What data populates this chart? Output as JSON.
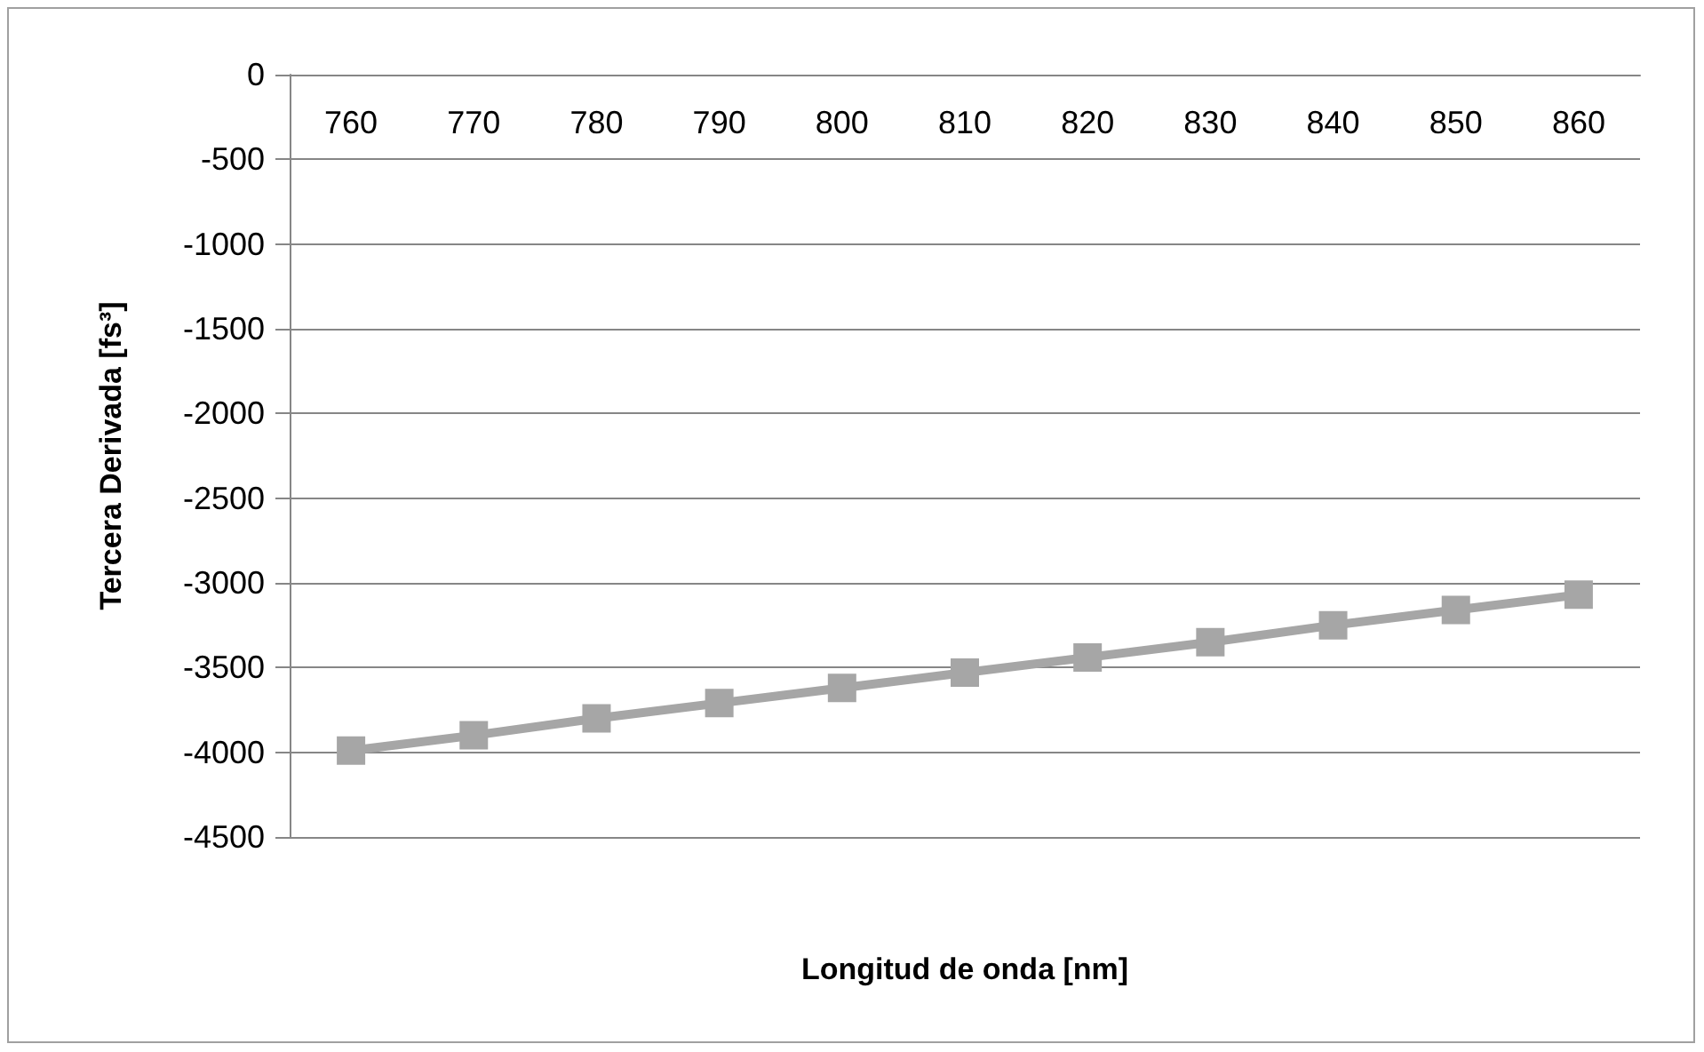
{
  "chart_data": {
    "type": "line",
    "xlabel": "Longitud de onda [nm]",
    "ylabel": "Tercera Derivada [fs³]",
    "categories": [
      "760",
      "770",
      "780",
      "790",
      "800",
      "810",
      "820",
      "830",
      "840",
      "850",
      "860"
    ],
    "series": [
      {
        "color": "#a6a6a6",
        "values": [
          -3990,
          -3900,
          -3800,
          -3710,
          -3620,
          -3530,
          -3440,
          -3350,
          -3250,
          -3160,
          -3070
        ]
      }
    ],
    "ylim": [
      -4500,
      0
    ],
    "yticks": [
      -4500,
      -4000,
      -3500,
      -3000,
      -2500,
      -2000,
      -1500,
      -1000,
      -500,
      0
    ],
    "grid": "y",
    "marker": "square",
    "line_style": "solid"
  }
}
